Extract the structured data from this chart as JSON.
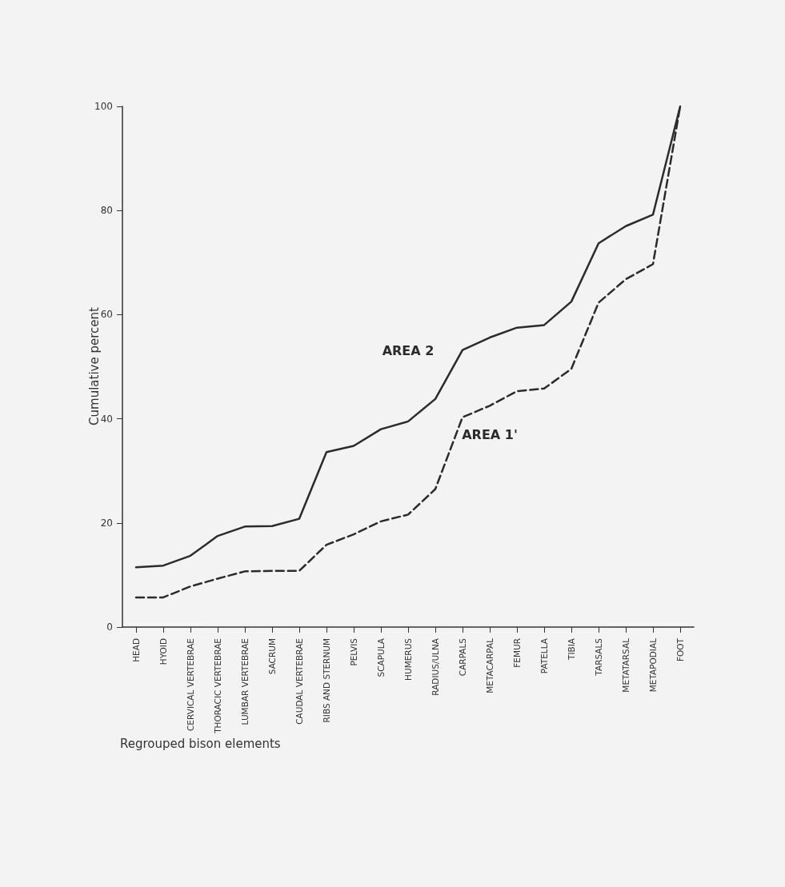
{
  "chart_data": {
    "type": "line",
    "xlabel": "Regrouped bison elements",
    "ylabel": "Cumulative percent",
    "categories": [
      "HEAD",
      "HYOID",
      "CERVICAL VERTEBRAE",
      "THORACIC VERTEBRAE",
      "LUMBAR VERTEBRAE",
      "SACRUM",
      "CAUDAL VERTEBRAE",
      "RIBS AND STERNUM",
      "PELVIS",
      "SCAPULA",
      "HUMERUS",
      "RADIUS/ULNA",
      "CARPALS",
      "METACARPAL",
      "FEMUR",
      "PATELLA",
      "TIBIA",
      "TARSALS",
      "METATARSAL",
      "METAPODIAL",
      "FOOT"
    ],
    "series": [
      {
        "name": "AREA 2",
        "color": "#2b2b2b",
        "line_style": "solid",
        "values": [
          11.5,
          11.8,
          13.7,
          17.5,
          19.3,
          19.4,
          20.8,
          33.6,
          34.8,
          38,
          39.5,
          43.8,
          53.2,
          55.6,
          57.5,
          58,
          62.5,
          73.7,
          77,
          79.2,
          100
        ]
      },
      {
        "name": "AREA 1'",
        "color": "#2b2b2b",
        "line_style": "dashed",
        "values": [
          5.7,
          5.7,
          7.8,
          9.3,
          10.7,
          10.8,
          10.8,
          15.8,
          17.8,
          20.3,
          21.6,
          26.5,
          40.3,
          42.5,
          45.3,
          45.8,
          49.6,
          62.3,
          66.8,
          69.7,
          100
        ]
      }
    ],
    "ylim": [
      0,
      100
    ],
    "yticks": [
      0,
      20,
      40,
      60,
      80,
      100
    ],
    "grid": false,
    "legend": false,
    "marker": "none"
  }
}
